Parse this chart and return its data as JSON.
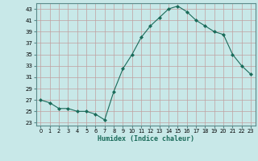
{
  "x": [
    0,
    1,
    2,
    3,
    4,
    5,
    6,
    7,
    8,
    9,
    10,
    11,
    12,
    13,
    14,
    15,
    16,
    17,
    18,
    19,
    20,
    21,
    22,
    23
  ],
  "y": [
    27,
    26.5,
    25.5,
    25.5,
    25,
    25,
    24.5,
    23.5,
    28.5,
    32.5,
    35,
    38,
    40,
    41.5,
    43,
    43.5,
    42.5,
    41,
    40,
    39,
    38.5,
    35,
    33,
    31.5
  ],
  "bg_color": "#c8e8e8",
  "grid_color": "#c0a0a0",
  "line_color": "#1a6b5a",
  "marker_color": "#1a6b5a",
  "xlabel": "Humidex (Indice chaleur)",
  "yticks": [
    23,
    25,
    27,
    29,
    31,
    33,
    35,
    37,
    39,
    41,
    43
  ],
  "xticks": [
    0,
    1,
    2,
    3,
    4,
    5,
    6,
    7,
    8,
    9,
    10,
    11,
    12,
    13,
    14,
    15,
    16,
    17,
    18,
    19,
    20,
    21,
    22,
    23
  ],
  "ylim": [
    22.5,
    44.0
  ],
  "xlim": [
    -0.5,
    23.5
  ]
}
